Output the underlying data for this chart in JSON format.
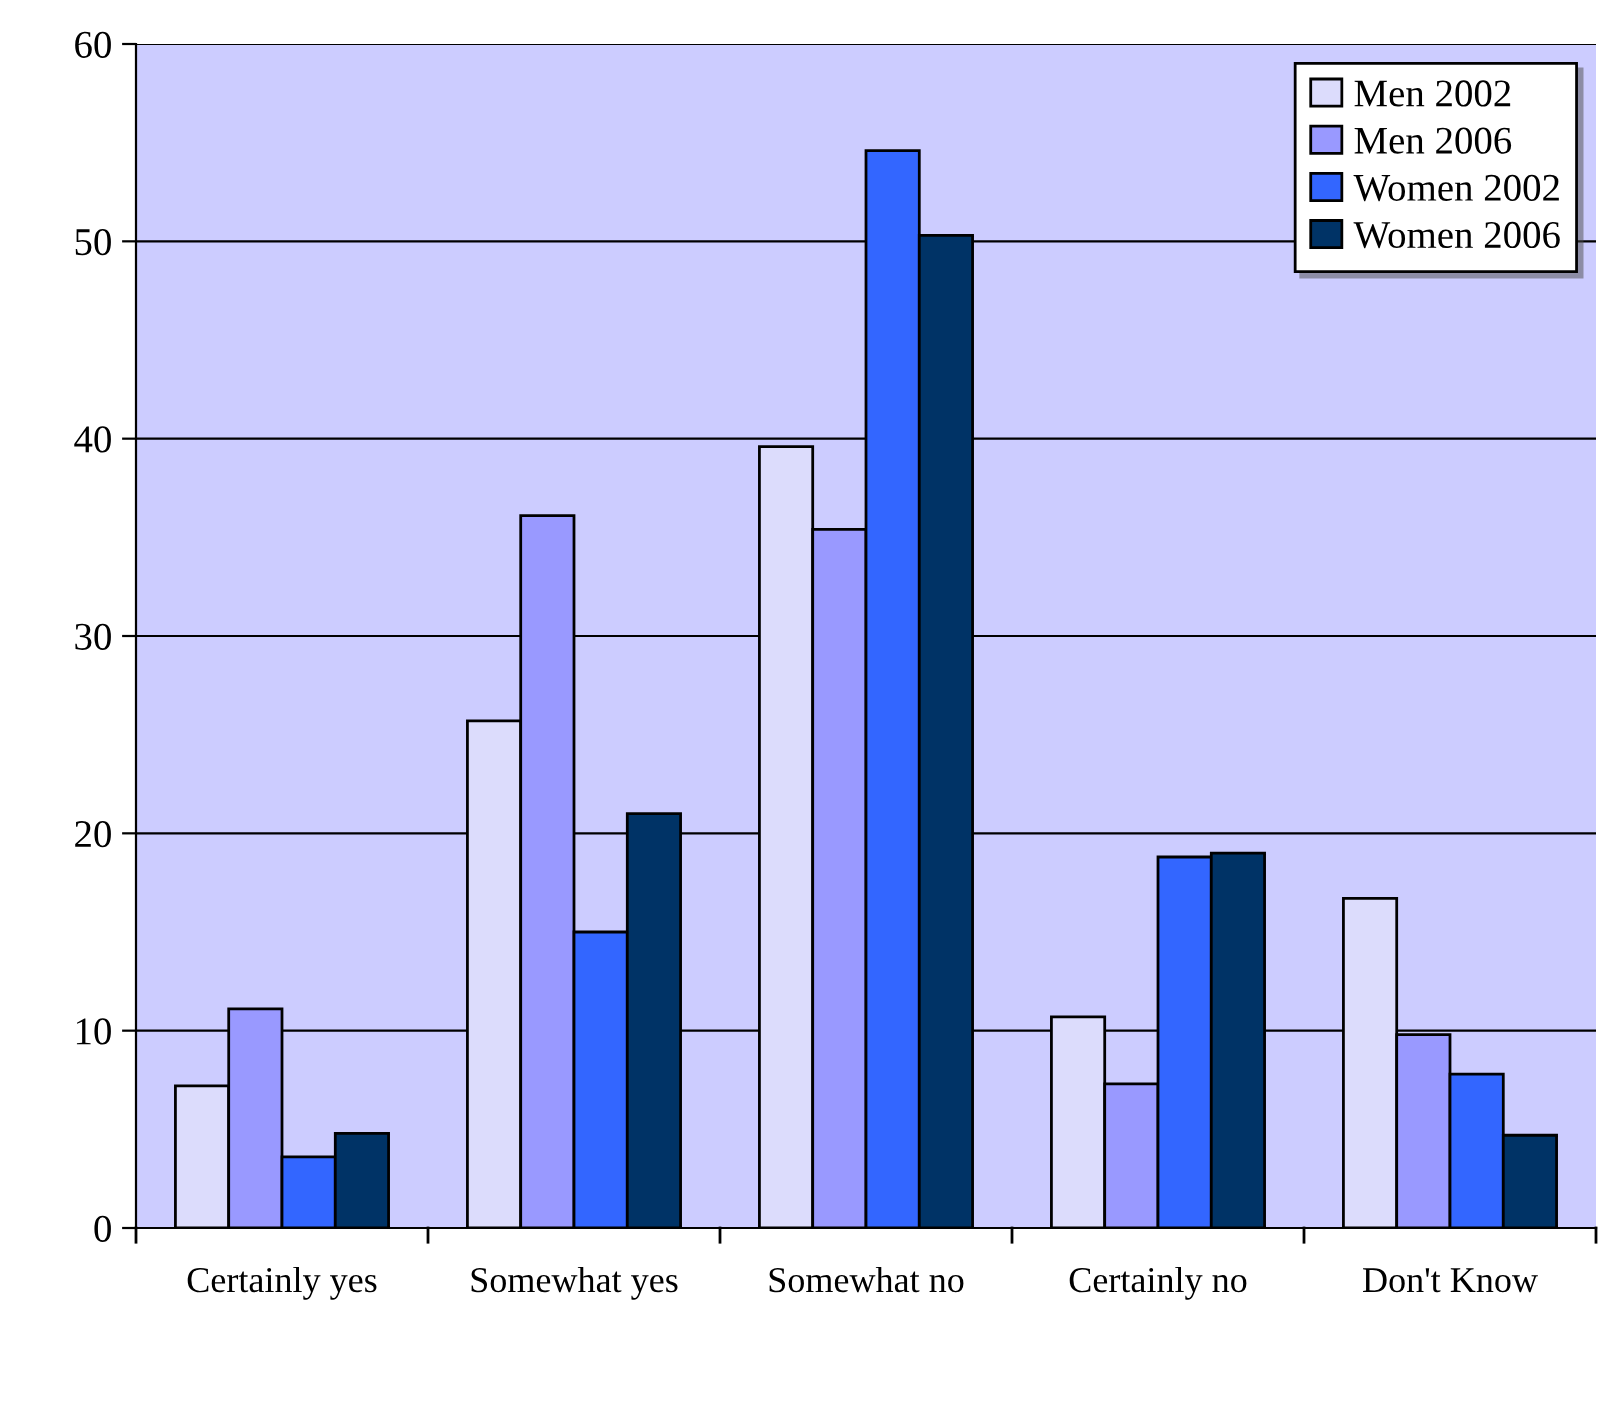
{
  "chart_data": {
    "type": "bar",
    "categories": [
      "Certainly yes",
      "Somewhat yes",
      "Somewhat no",
      "Certainly no",
      "Don't Know"
    ],
    "series": [
      {
        "name": "Men 2002",
        "color": "#dcdcfc",
        "values": [
          7.2,
          25.7,
          39.6,
          10.7,
          16.7
        ]
      },
      {
        "name": "Men 2006",
        "color": "#9999ff",
        "values": [
          11.1,
          36.1,
          35.4,
          7.3,
          9.8
        ]
      },
      {
        "name": "Women 2002",
        "color": "#3366ff",
        "values": [
          3.6,
          15.0,
          54.6,
          18.8,
          7.8
        ]
      },
      {
        "name": "Women 2006",
        "color": "#003366",
        "values": [
          4.8,
          21.0,
          50.3,
          19.0,
          4.7
        ]
      }
    ],
    "ylim": [
      0,
      60
    ],
    "yticks": [
      0,
      10,
      20,
      30,
      40,
      50,
      60
    ],
    "grid": "y",
    "legend": "top right"
  }
}
